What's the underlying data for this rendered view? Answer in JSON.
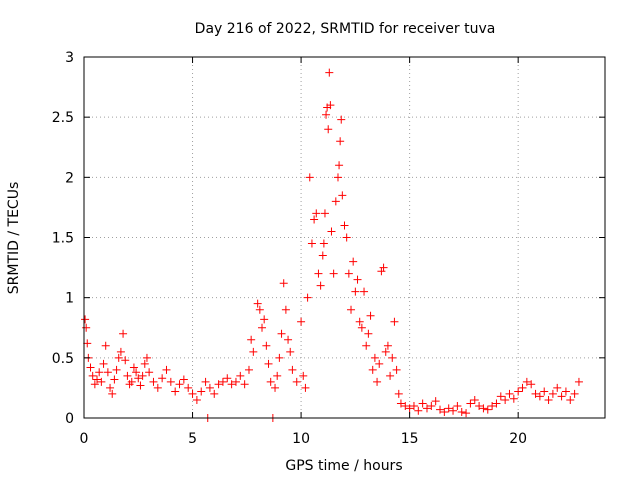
{
  "chart_data": {
    "type": "scatter",
    "title": "Day 216 of 2022, SRMTID for receiver tuva",
    "xlabel": "GPS time / hours",
    "ylabel": "SRMTID / TECUs",
    "xlim": [
      0,
      24
    ],
    "ylim": [
      0,
      3
    ],
    "xticks": [
      "0",
      "5",
      "10",
      "15",
      "20"
    ],
    "xtick_values": [
      0,
      5,
      10,
      15,
      20
    ],
    "yticks": [
      "0",
      "0.5",
      "1",
      "1.5",
      "2",
      "2.5",
      "3"
    ],
    "ytick_values": [
      0,
      0.5,
      1,
      1.5,
      2,
      2.5,
      3
    ],
    "grid": true,
    "marker": "+",
    "color": "#ff0000",
    "series": [
      {
        "name": "SRMTID",
        "points": [
          [
            0.05,
            0.82
          ],
          [
            0.1,
            0.75
          ],
          [
            0.15,
            0.62
          ],
          [
            0.2,
            0.5
          ],
          [
            0.3,
            0.42
          ],
          [
            0.4,
            0.35
          ],
          [
            0.5,
            0.28
          ],
          [
            0.6,
            0.32
          ],
          [
            0.7,
            0.38
          ],
          [
            0.8,
            0.3
          ],
          [
            0.9,
            0.45
          ],
          [
            1.0,
            0.6
          ],
          [
            1.1,
            0.38
          ],
          [
            1.2,
            0.25
          ],
          [
            1.3,
            0.2
          ],
          [
            1.4,
            0.32
          ],
          [
            1.5,
            0.4
          ],
          [
            1.6,
            0.5
          ],
          [
            1.7,
            0.55
          ],
          [
            1.8,
            0.7
          ],
          [
            1.9,
            0.48
          ],
          [
            2.0,
            0.35
          ],
          [
            2.1,
            0.28
          ],
          [
            2.2,
            0.3
          ],
          [
            2.3,
            0.42
          ],
          [
            2.4,
            0.38
          ],
          [
            2.5,
            0.33
          ],
          [
            2.6,
            0.27
          ],
          [
            2.7,
            0.35
          ],
          [
            2.8,
            0.45
          ],
          [
            2.9,
            0.5
          ],
          [
            3.0,
            0.38
          ],
          [
            3.2,
            0.3
          ],
          [
            3.4,
            0.25
          ],
          [
            3.6,
            0.33
          ],
          [
            3.8,
            0.4
          ],
          [
            4.0,
            0.3
          ],
          [
            4.2,
            0.22
          ],
          [
            4.4,
            0.28
          ],
          [
            4.6,
            0.32
          ],
          [
            4.8,
            0.25
          ],
          [
            5.0,
            0.2
          ],
          [
            5.2,
            0.15
          ],
          [
            5.4,
            0.22
          ],
          [
            5.6,
            0.3
          ],
          [
            5.7,
            0.0
          ],
          [
            5.8,
            0.25
          ],
          [
            6.0,
            0.2
          ],
          [
            6.2,
            0.28
          ],
          [
            6.4,
            0.3
          ],
          [
            6.6,
            0.33
          ],
          [
            6.8,
            0.28
          ],
          [
            7.0,
            0.3
          ],
          [
            7.2,
            0.35
          ],
          [
            7.4,
            0.28
          ],
          [
            7.6,
            0.4
          ],
          [
            7.7,
            0.65
          ],
          [
            7.8,
            0.55
          ],
          [
            8.0,
            0.95
          ],
          [
            8.1,
            0.9
          ],
          [
            8.2,
            0.75
          ],
          [
            8.3,
            0.82
          ],
          [
            8.4,
            0.6
          ],
          [
            8.5,
            0.45
          ],
          [
            8.6,
            0.3
          ],
          [
            8.7,
            0.0
          ],
          [
            8.8,
            0.25
          ],
          [
            8.9,
            0.35
          ],
          [
            9.0,
            0.5
          ],
          [
            9.1,
            0.7
          ],
          [
            9.2,
            1.12
          ],
          [
            9.3,
            0.9
          ],
          [
            9.4,
            0.65
          ],
          [
            9.5,
            0.55
          ],
          [
            9.6,
            0.4
          ],
          [
            9.8,
            0.3
          ],
          [
            10.0,
            0.8
          ],
          [
            10.1,
            0.35
          ],
          [
            10.2,
            0.25
          ],
          [
            10.3,
            1.0
          ],
          [
            10.4,
            2.0
          ],
          [
            10.5,
            1.45
          ],
          [
            10.6,
            1.65
          ],
          [
            10.7,
            1.7
          ],
          [
            10.8,
            1.2
          ],
          [
            10.9,
            1.1
          ],
          [
            11.0,
            1.35
          ],
          [
            11.05,
            1.45
          ],
          [
            11.1,
            1.7
          ],
          [
            11.15,
            2.52
          ],
          [
            11.2,
            2.58
          ],
          [
            11.25,
            2.4
          ],
          [
            11.3,
            2.87
          ],
          [
            11.35,
            2.6
          ],
          [
            11.4,
            1.55
          ],
          [
            11.5,
            1.2
          ],
          [
            11.6,
            1.8
          ],
          [
            11.7,
            2.0
          ],
          [
            11.75,
            2.1
          ],
          [
            11.8,
            2.3
          ],
          [
            11.85,
            2.48
          ],
          [
            11.9,
            1.85
          ],
          [
            12.0,
            1.6
          ],
          [
            12.1,
            1.5
          ],
          [
            12.2,
            1.2
          ],
          [
            12.3,
            0.9
          ],
          [
            12.4,
            1.3
          ],
          [
            12.5,
            1.05
          ],
          [
            12.6,
            1.15
          ],
          [
            12.7,
            0.8
          ],
          [
            12.8,
            0.75
          ],
          [
            12.9,
            1.05
          ],
          [
            13.0,
            0.6
          ],
          [
            13.1,
            0.7
          ],
          [
            13.2,
            0.85
          ],
          [
            13.3,
            0.4
          ],
          [
            13.4,
            0.5
          ],
          [
            13.5,
            0.3
          ],
          [
            13.6,
            0.45
          ],
          [
            13.7,
            1.22
          ],
          [
            13.8,
            1.25
          ],
          [
            13.9,
            0.55
          ],
          [
            14.0,
            0.6
          ],
          [
            14.1,
            0.35
          ],
          [
            14.2,
            0.5
          ],
          [
            14.3,
            0.8
          ],
          [
            14.4,
            0.4
          ],
          [
            14.5,
            0.2
          ],
          [
            14.6,
            0.12
          ],
          [
            14.8,
            0.1
          ],
          [
            15.0,
            0.08
          ],
          [
            15.2,
            0.1
          ],
          [
            15.4,
            0.06
          ],
          [
            15.6,
            0.12
          ],
          [
            15.8,
            0.08
          ],
          [
            16.0,
            0.1
          ],
          [
            16.2,
            0.14
          ],
          [
            16.4,
            0.07
          ],
          [
            16.6,
            0.05
          ],
          [
            16.8,
            0.08
          ],
          [
            17.0,
            0.06
          ],
          [
            17.2,
            0.1
          ],
          [
            17.4,
            0.05
          ],
          [
            17.6,
            0.04
          ],
          [
            17.8,
            0.12
          ],
          [
            18.0,
            0.15
          ],
          [
            18.2,
            0.1
          ],
          [
            18.4,
            0.08
          ],
          [
            18.6,
            0.07
          ],
          [
            18.8,
            0.1
          ],
          [
            19.0,
            0.12
          ],
          [
            19.2,
            0.18
          ],
          [
            19.4,
            0.15
          ],
          [
            19.6,
            0.2
          ],
          [
            19.8,
            0.16
          ],
          [
            20.0,
            0.22
          ],
          [
            20.2,
            0.25
          ],
          [
            20.4,
            0.3
          ],
          [
            20.6,
            0.28
          ],
          [
            20.8,
            0.2
          ],
          [
            21.0,
            0.18
          ],
          [
            21.2,
            0.22
          ],
          [
            21.4,
            0.15
          ],
          [
            21.6,
            0.2
          ],
          [
            21.8,
            0.25
          ],
          [
            22.0,
            0.18
          ],
          [
            22.2,
            0.22
          ],
          [
            22.4,
            0.15
          ],
          [
            22.6,
            0.2
          ],
          [
            22.8,
            0.3
          ]
        ]
      }
    ]
  }
}
